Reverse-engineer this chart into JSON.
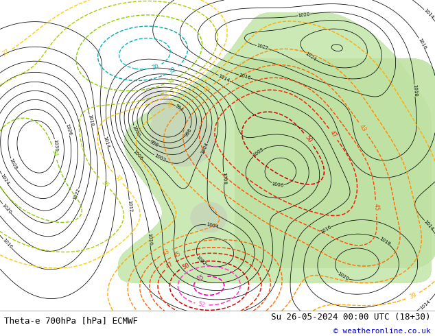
{
  "title_left": "Theta-e 700hPa [hPa] ECMWF",
  "title_right": "Su 26-05-2024 00:00 UTC (18+30)",
  "copyright": "© weatheronline.co.uk",
  "bg_color": "#ffffff",
  "fig_width": 6.34,
  "fig_height": 4.9,
  "dpi": 100,
  "copyright_color": "#0000cc",
  "gray_bg": "#e8e8e8",
  "white_bg": "#f5f5f5"
}
